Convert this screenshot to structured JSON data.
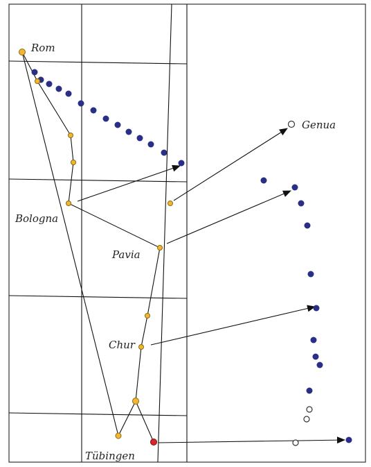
{
  "labels": {
    "rom": "Rom",
    "genua": "Genua",
    "bologna": "Bologna",
    "pavia": "Pavia",
    "chur": "Chur",
    "tuebingen": "Tübingen"
  },
  "colors": {
    "route_point": "#f2b630",
    "route_point_border": "#8a6a10",
    "projection_point": "#2a2f86",
    "hollow_point": "#ffffff",
    "end_point": "#d8262a",
    "lines": "#111111",
    "frame": "#333333"
  }
}
